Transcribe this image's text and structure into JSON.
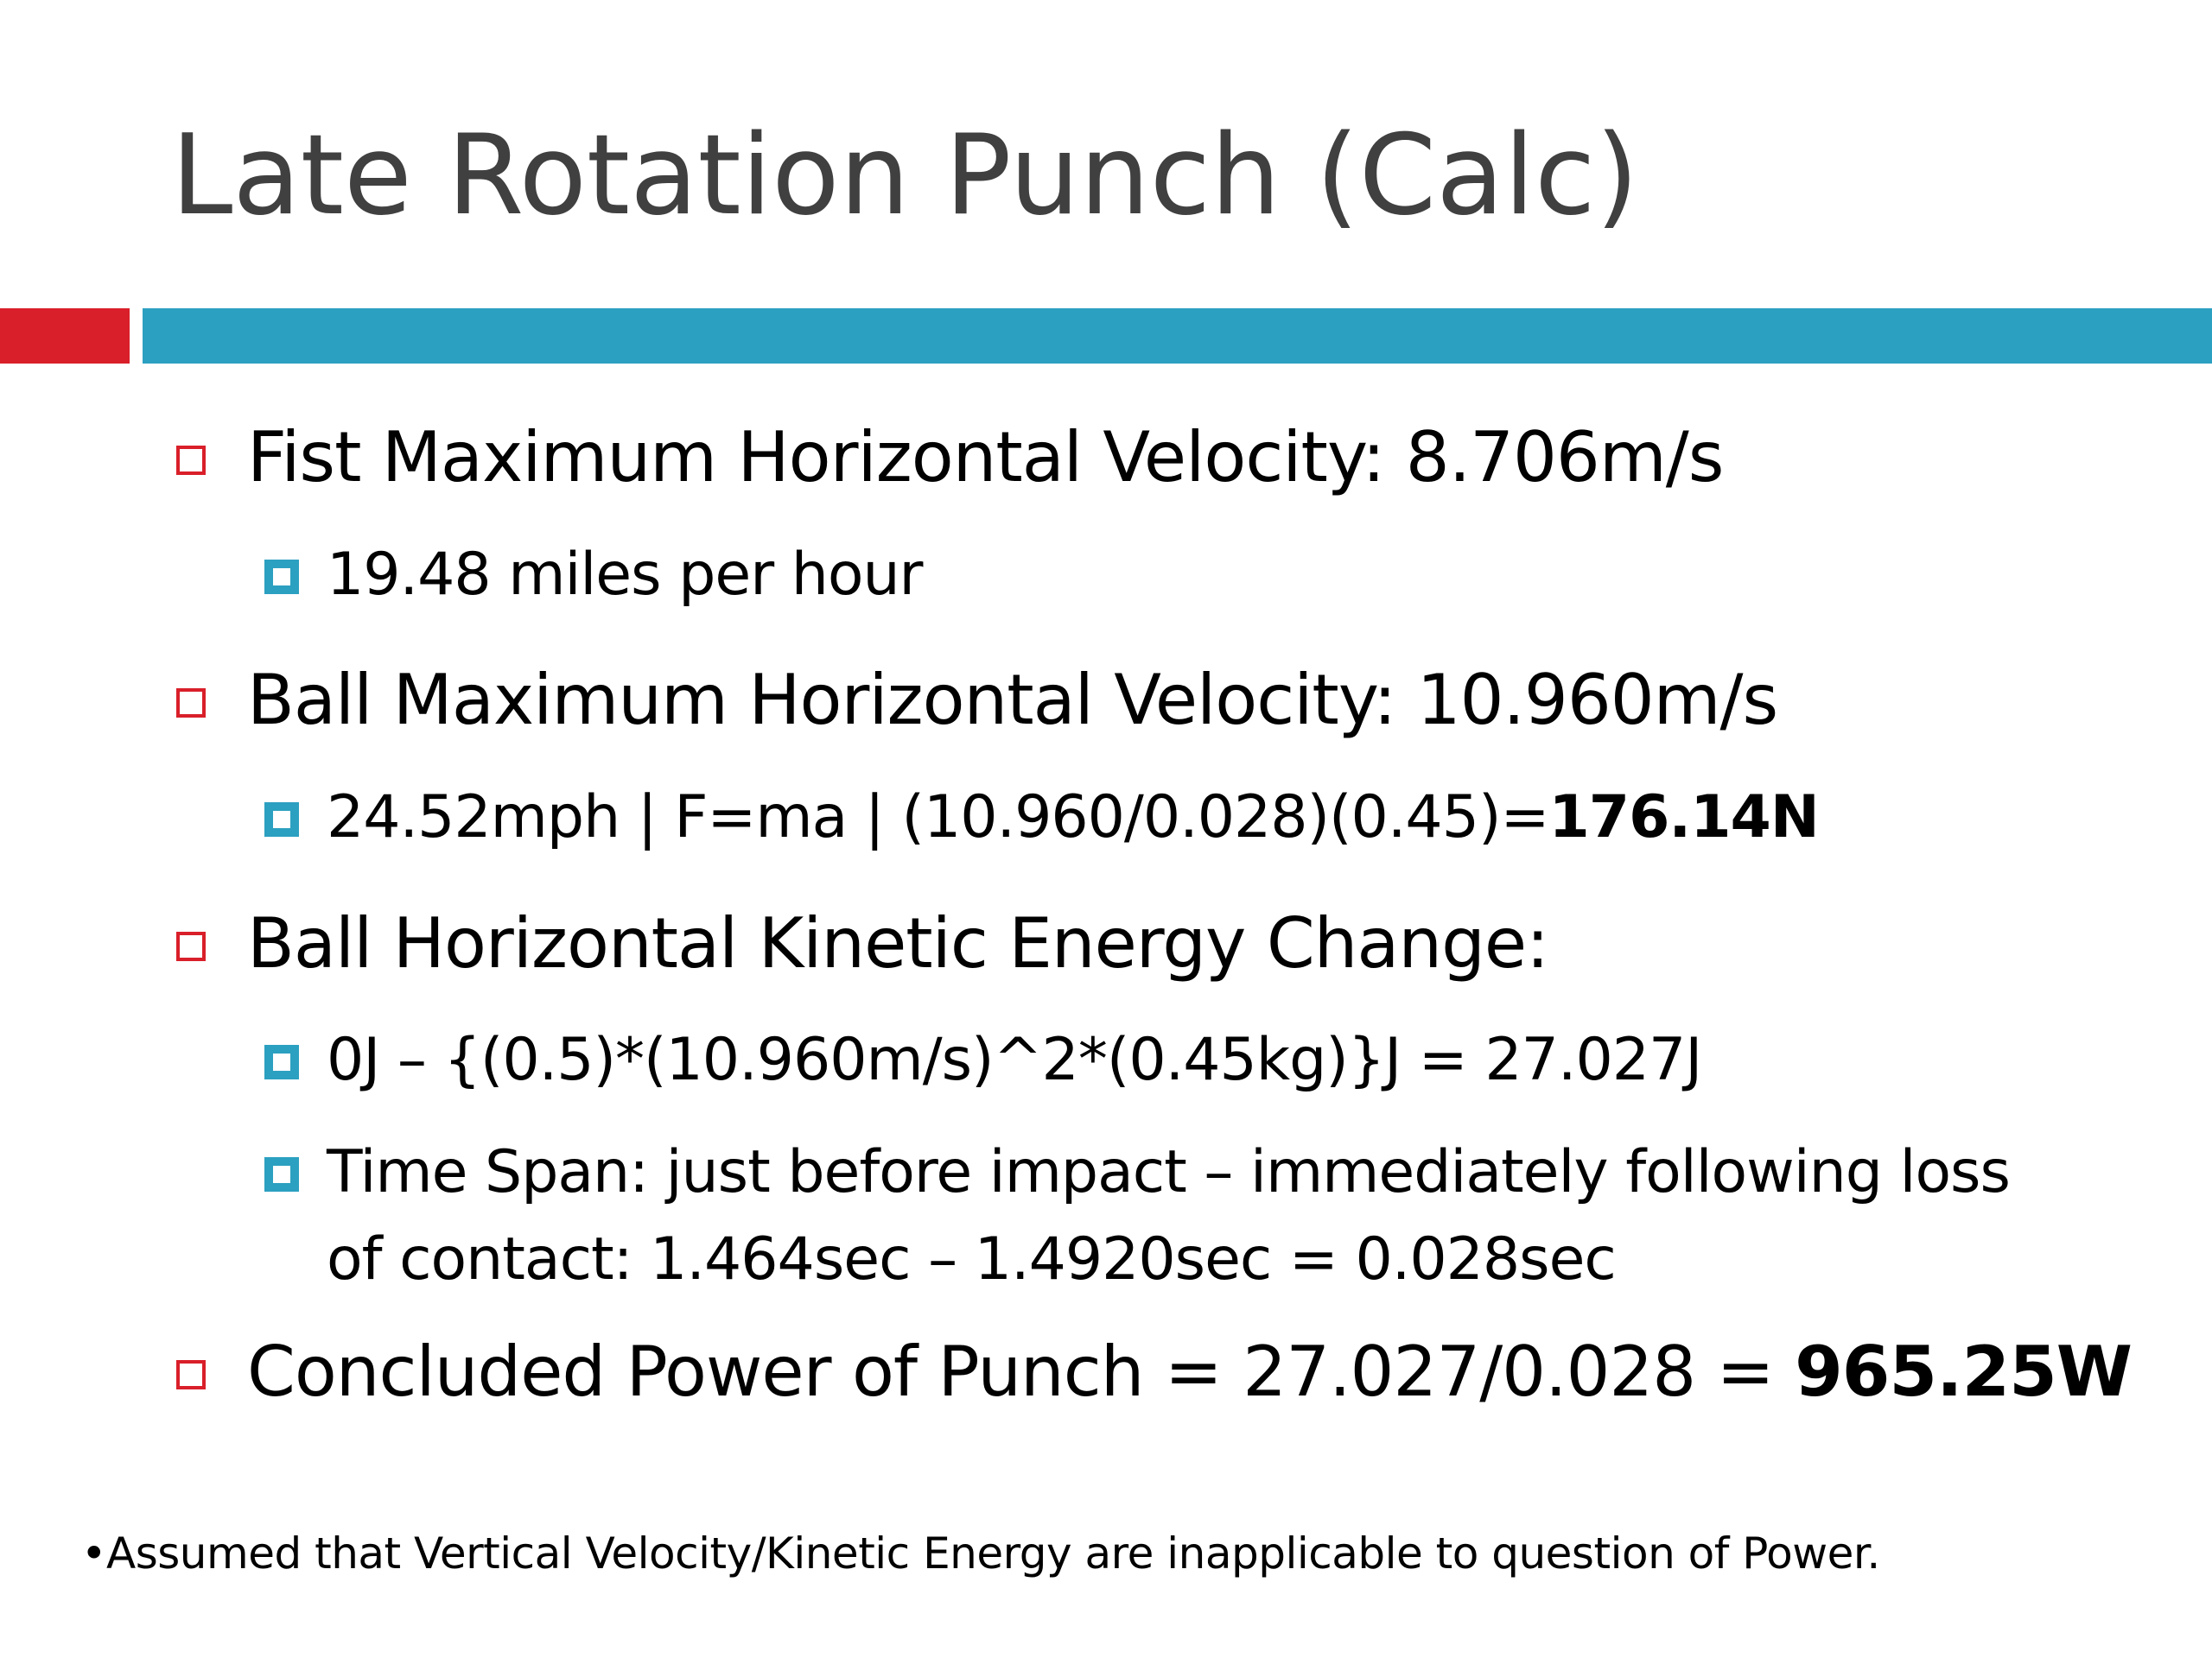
{
  "title": "Late Rotation Punch (Calc)",
  "colors": {
    "accent_red": "#d91f2a",
    "accent_teal": "#2ca0c0",
    "title_gray": "#404040"
  },
  "bullets": {
    "fist_velocity": "Fist Maximum Horizontal Velocity: 8.706m/s",
    "fist_mph": "19.48 miles per hour",
    "ball_velocity": "Ball Maximum Horizontal Velocity: 10.960m/s",
    "ball_force_prefix": "24.52mph | F=ma | (10.960/0.028)(0.45)=",
    "ball_force_result": "176.14N",
    "ke_change": "Ball Horizontal Kinetic Energy Change:",
    "ke_formula": "0J – {(0.5)*(10.960m/s)^2*(0.45kg)}J = 27.027J",
    "time_span_line1": "Time Span: just before impact – immediately following loss",
    "time_span_line2": "of contact: 1.464sec – 1.4920sec = 0.028sec",
    "power_prefix": "Concluded Power of Punch = 27.027/0.028 = ",
    "power_result": "965.25W"
  },
  "footnote": "•Assumed that Vertical Velocity/Kinetic Energy are inapplicable to question of Power."
}
